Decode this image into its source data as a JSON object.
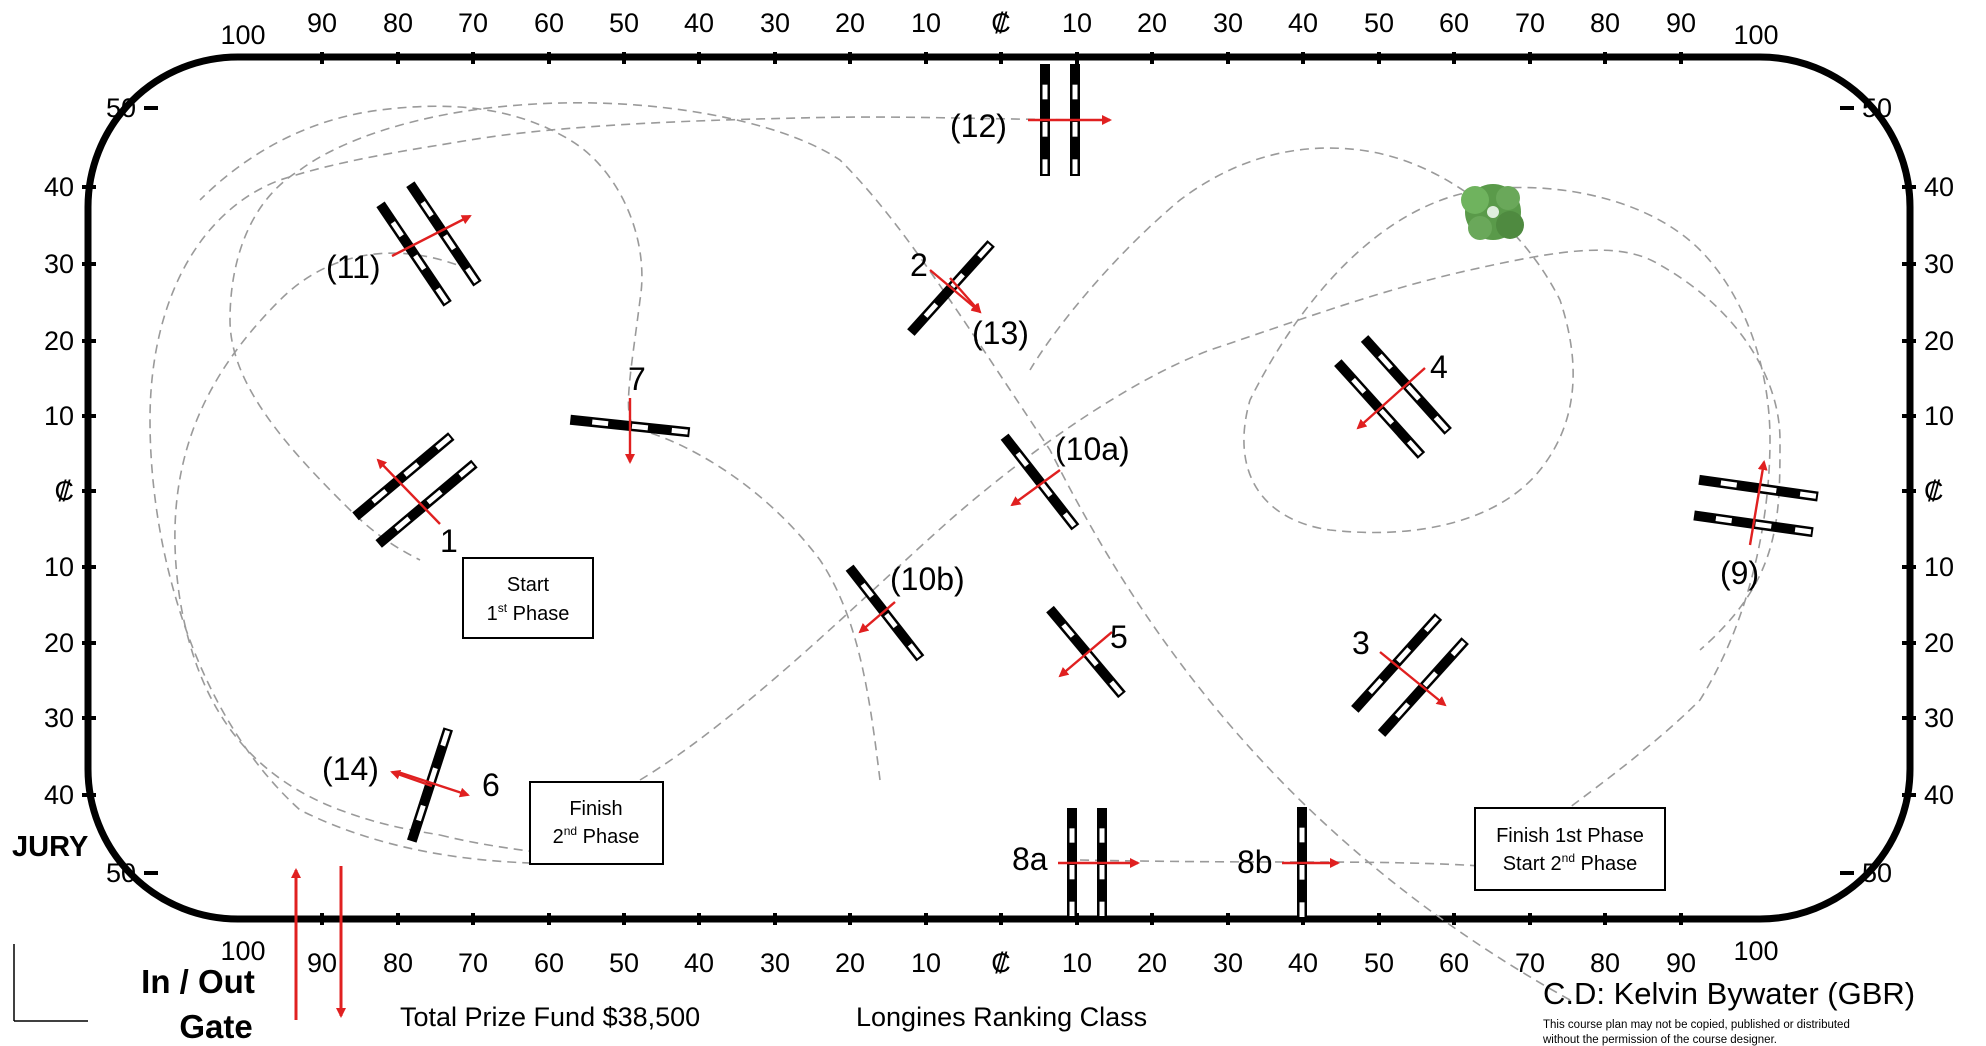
{
  "arena": {
    "top_ticks": [
      "100",
      "90",
      "80",
      "70",
      "60",
      "50",
      "40",
      "30",
      "20",
      "10",
      "₡",
      "10",
      "20",
      "30",
      "40",
      "50",
      "60",
      "70",
      "80",
      "90",
      "100"
    ],
    "bottom_ticks": [
      "100",
      "90",
      "80",
      "70",
      "60",
      "50",
      "40",
      "30",
      "20",
      "10",
      "₡",
      "10",
      "20",
      "30",
      "40",
      "50",
      "60",
      "70",
      "80",
      "90",
      "100"
    ],
    "left_ticks": [
      "50",
      "40",
      "30",
      "20",
      "10",
      "₡",
      "10",
      "20",
      "30",
      "40",
      "50"
    ],
    "right_ticks": [
      "50",
      "40",
      "30",
      "20",
      "10",
      "₡",
      "10",
      "20",
      "30",
      "40",
      "50"
    ]
  },
  "fences": {
    "f1": "1",
    "f2": "2",
    "f3": "3",
    "f4": "4",
    "f5": "5",
    "f6": "6",
    "f7": "7",
    "f8a": "8a",
    "f8b": "8b",
    "f9": "(9)",
    "f10a": "(10a)",
    "f10b": "(10b)",
    "f11": "(11)",
    "f12": "(12)",
    "f13": "(13)",
    "f14": "(14)"
  },
  "boxes": {
    "start": {
      "line1": "Start",
      "line2_num": "1",
      "line2_sup": "st",
      "line2_rest": " Phase"
    },
    "finish2": {
      "line1": "Finish",
      "line2_num": "2",
      "line2_sup": "nd",
      "line2_rest": " Phase"
    },
    "finish1": {
      "line1": "Finish 1st Phase",
      "line2_pre": "Start ",
      "line2_num": "2",
      "line2_sup": "nd",
      "line2_rest": " Phase"
    }
  },
  "jury_label": "JURY",
  "gate": {
    "line1": "In / Out",
    "line2": "Gate"
  },
  "footer": {
    "prize": "Total Prize Fund $38,500",
    "class_name": "Longines Ranking Class"
  },
  "designer": {
    "credit": "C.D: Kelvin Bywater (GBR)",
    "notice_line1": "This course plan may not be copied, published or distributed",
    "notice_line2": "without the permission of the course designer."
  },
  "colors": {
    "arena_border": "#000000",
    "arrow": "#e02020",
    "path": "#9a9a9a",
    "bush": "#5a9a4a"
  }
}
